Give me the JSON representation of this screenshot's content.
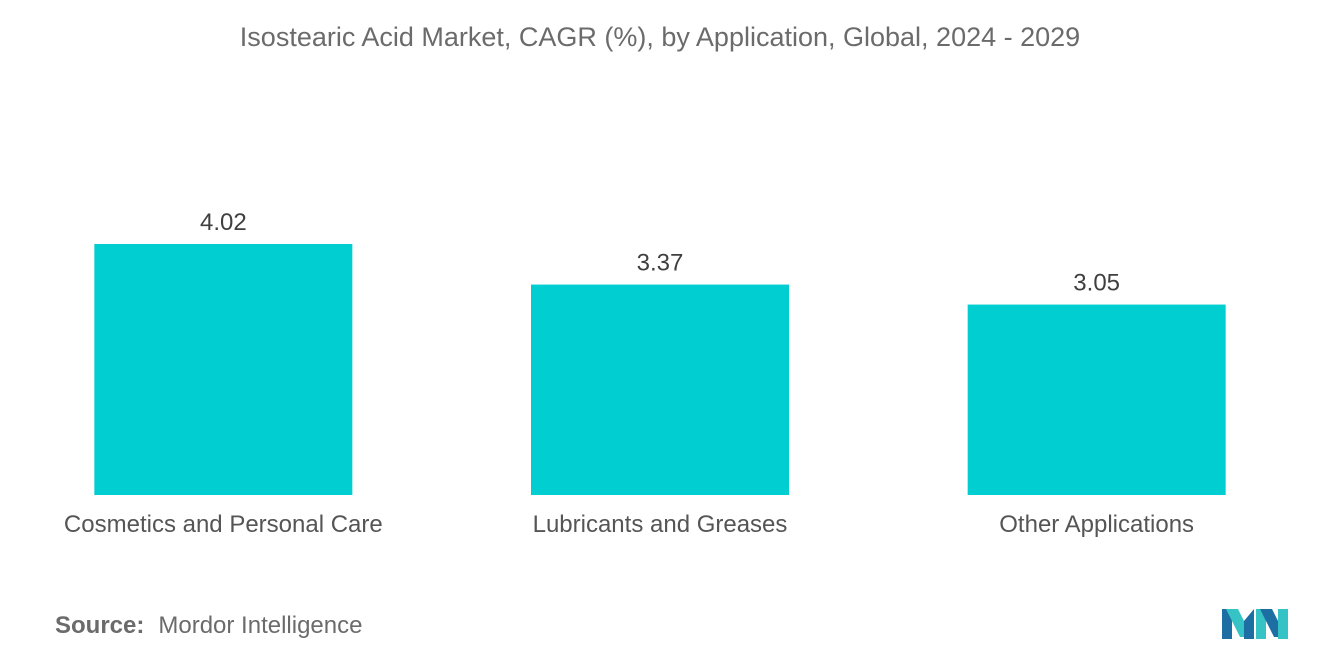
{
  "chart_data": {
    "type": "bar",
    "title": "Isostearic Acid Market, CAGR (%), by Application, Global, 2024 - 2029",
    "categories": [
      "Cosmetics and Personal Care",
      "Lubricants and Greases",
      "Other Applications"
    ],
    "values": [
      4.02,
      3.37,
      3.05
    ],
    "value_labels": [
      "4.02",
      "3.37",
      "3.05"
    ],
    "xlabel": "",
    "ylabel": "",
    "ylim": [
      0,
      4.02
    ],
    "grid": false,
    "legend": "none",
    "bar_color": "#00ced1"
  },
  "footer": {
    "source_label": "Source:",
    "source_value": "Mordor Intelligence"
  },
  "logo": {
    "icon": "mordor-intelligence-logo-icon",
    "colors": [
      "#1d6fa3",
      "#36c3c6"
    ]
  }
}
